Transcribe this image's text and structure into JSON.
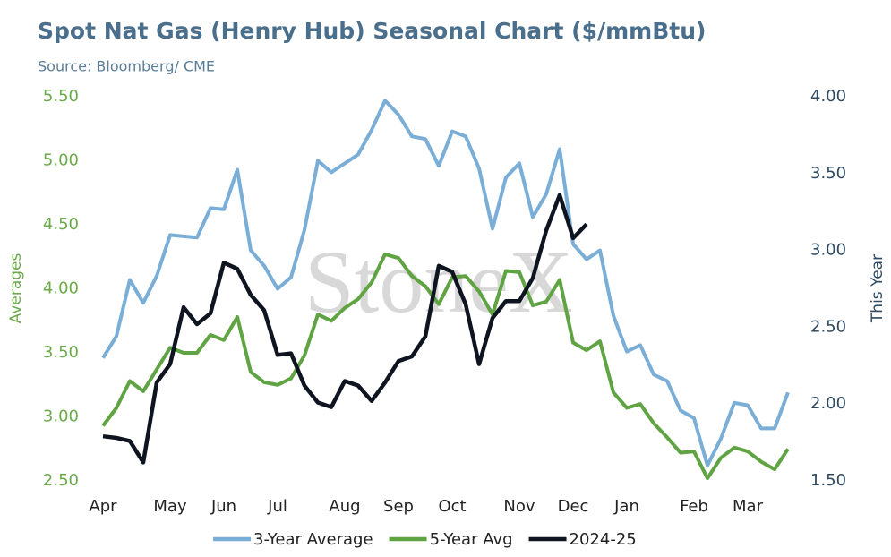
{
  "chart_data": {
    "type": "line",
    "title": "Spot Nat Gas (Henry Hub) Seasonal Chart ($/mmBtu)",
    "subtitle": "Source: Bloomberg/ CME",
    "watermark": "StoneX",
    "y_label": "Averages",
    "y2_label": "This Year",
    "categories": [
      "Apr",
      null,
      null,
      null,
      null,
      "May",
      null,
      null,
      null,
      "Jun",
      null,
      null,
      null,
      "Jul",
      null,
      null,
      null,
      null,
      "Aug",
      null,
      null,
      null,
      "Sep",
      null,
      null,
      null,
      "Oct",
      null,
      null,
      null,
      null,
      "Nov",
      null,
      null,
      null,
      "Dec",
      null,
      null,
      null,
      "Jan",
      null,
      null,
      null,
      null,
      "Feb",
      null,
      null,
      null,
      "Mar",
      null,
      null,
      null
    ],
    "ylim": [
      2.5,
      5.5
    ],
    "yticks": [
      {
        "value": 2.5,
        "label": "2.50"
      },
      {
        "value": 3,
        "label": "3.00"
      },
      {
        "value": 3.5,
        "label": "3.50"
      },
      {
        "value": 4,
        "label": "4.00"
      },
      {
        "value": 4.5,
        "label": "4.50"
      },
      {
        "value": 5,
        "label": "5.00"
      },
      {
        "value": 5.5,
        "label": "5.50"
      }
    ],
    "y2lim": [
      1.5,
      4
    ],
    "y2ticks": [
      {
        "value": 1.5,
        "label": "1.50"
      },
      {
        "value": 2,
        "label": "2.00"
      },
      {
        "value": 2.5,
        "label": "2.50"
      },
      {
        "value": 3,
        "label": "3.00"
      },
      {
        "value": 3.5,
        "label": "3.50"
      },
      {
        "value": 4,
        "label": "4.00"
      }
    ],
    "grid": false,
    "legend": "bottom",
    "series": [
      {
        "name": "3-Year Average",
        "color": "#7aaed6",
        "values": [
          3.46,
          3.63,
          4.07,
          3.89,
          4.1,
          4.42,
          4.41,
          4.4,
          4.63,
          4.62,
          4.93,
          4.3,
          4.18,
          4.0,
          4.09,
          4.46,
          5.0,
          4.91,
          4.98,
          5.05,
          5.24,
          5.47,
          5.36,
          5.19,
          5.17,
          4.96,
          5.23,
          5.19,
          4.94,
          4.47,
          4.87,
          4.98,
          4.56,
          4.74,
          5.09,
          4.35,
          4.23,
          4.3,
          3.79,
          3.51,
          3.56,
          3.33,
          3.28,
          3.05,
          2.99,
          2.62,
          2.83,
          3.11,
          3.09,
          2.91,
          2.91,
          3.19
        ]
      },
      {
        "name": "5-Year Avg",
        "color": "#5fa343",
        "values": [
          2.93,
          3.07,
          3.28,
          3.2,
          3.37,
          3.54,
          3.5,
          3.5,
          3.64,
          3.6,
          3.78,
          3.35,
          3.27,
          3.25,
          3.3,
          3.48,
          3.8,
          3.75,
          3.85,
          3.92,
          4.05,
          4.27,
          4.24,
          4.1,
          4.02,
          3.88,
          4.09,
          4.1,
          3.98,
          3.8,
          4.14,
          4.13,
          3.87,
          3.9,
          4.07,
          3.58,
          3.52,
          3.59,
          3.19,
          3.07,
          3.1,
          2.95,
          2.84,
          2.72,
          2.73,
          2.52,
          2.68,
          2.76,
          2.73,
          2.65,
          2.59,
          2.75
        ]
      },
      {
        "name": "2024-25",
        "color": "#0e1420",
        "axis": "y2",
        "values": [
          1.79,
          1.78,
          1.76,
          1.62,
          2.14,
          2.26,
          2.63,
          2.52,
          2.59,
          2.92,
          2.88,
          2.71,
          2.61,
          2.32,
          2.33,
          2.12,
          2.01,
          1.98,
          2.15,
          2.12,
          2.02,
          2.14,
          2.28,
          2.31,
          2.44,
          2.9,
          2.86,
          2.65,
          2.26,
          2.56,
          2.67,
          2.67,
          2.82,
          3.13,
          3.36,
          3.08,
          3.17,
          null,
          null,
          null,
          null,
          null,
          null,
          null,
          null,
          null,
          null,
          null,
          null,
          null,
          null,
          null
        ]
      }
    ]
  }
}
